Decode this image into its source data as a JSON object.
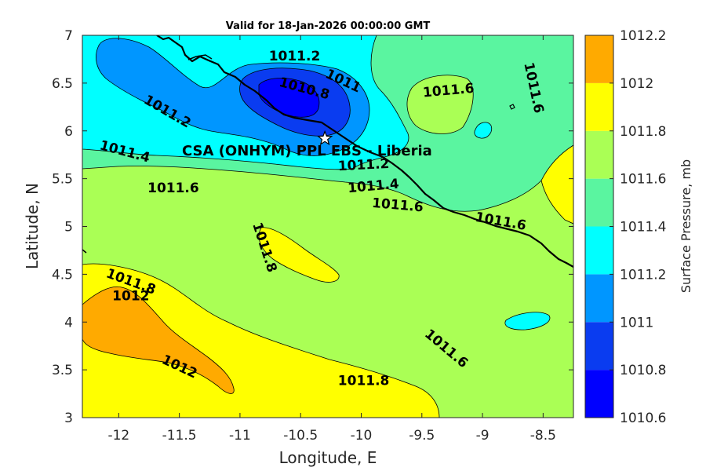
{
  "chart_data": {
    "type": "contour",
    "title": "Valid for 18-Jan-2026 00:00:00 GMT",
    "xlabel": "Longitude, E",
    "ylabel": "Latitude, N",
    "xlim": [
      -12.3,
      -8.25
    ],
    "ylim": [
      3,
      7
    ],
    "xticks": [
      "-12",
      "-11.5",
      "-11",
      "-10.5",
      "-10",
      "-9.5",
      "-9",
      "-8.5"
    ],
    "yticks": [
      "3",
      "3.5",
      "4",
      "4.5",
      "5",
      "5.5",
      "6",
      "6.5",
      "7"
    ],
    "colorbar": {
      "label": "Surface Pressure, mb",
      "levels": [
        "1010.6",
        "1010.8",
        "1011",
        "1011.2",
        "1011.4",
        "1011.6",
        "1011.8",
        "1012",
        "1012.2"
      ],
      "colors": [
        "#0000ff",
        "#0a3cf0",
        "#0096ff",
        "#00ffff",
        "#5af5a0",
        "#aaff55",
        "#ffff00",
        "#ffaa00",
        "#ff5500"
      ]
    },
    "contour_labels": [
      {
        "text": "1011.2",
        "x": -10.55,
        "y": 6.78,
        "rot": 0
      },
      {
        "text": "1011",
        "x": -10.15,
        "y": 6.52,
        "rot": 25
      },
      {
        "text": "1010.8",
        "x": -10.47,
        "y": 6.44,
        "rot": 15
      },
      {
        "text": "1011.2",
        "x": -11.6,
        "y": 6.2,
        "rot": 30
      },
      {
        "text": "1011.4",
        "x": -11.95,
        "y": 5.78,
        "rot": 15
      },
      {
        "text": "1011.6",
        "x": -11.55,
        "y": 5.4,
        "rot": 0
      },
      {
        "text": "1011.2",
        "x": -9.98,
        "y": 5.64,
        "rot": -3
      },
      {
        "text": "1011.4",
        "x": -9.9,
        "y": 5.42,
        "rot": -5
      },
      {
        "text": "1011.6",
        "x": -9.7,
        "y": 5.22,
        "rot": 5
      },
      {
        "text": "1011.6",
        "x": -9.28,
        "y": 6.42,
        "rot": -5
      },
      {
        "text": "1011.6",
        "x": -8.58,
        "y": 6.45,
        "rot": 78
      },
      {
        "text": "1011.6",
        "x": -8.85,
        "y": 5.05,
        "rot": 10
      },
      {
        "text": "1011.8",
        "x": -10.8,
        "y": 4.78,
        "rot": 72
      },
      {
        "text": "1011.8",
        "x": -11.9,
        "y": 4.42,
        "rot": 20
      },
      {
        "text": "1012",
        "x": -11.9,
        "y": 4.27,
        "rot": 0
      },
      {
        "text": "1011.6",
        "x": -9.3,
        "y": 3.72,
        "rot": 40
      },
      {
        "text": "1012",
        "x": -11.5,
        "y": 3.53,
        "rot": 25
      },
      {
        "text": "1011.8",
        "x": -9.98,
        "y": 3.38,
        "rot": 0
      }
    ],
    "station": {
      "name": "CSA (ONHYM) PPL EBS  - Liberia",
      "lon": -10.3,
      "lat": 5.92
    }
  }
}
